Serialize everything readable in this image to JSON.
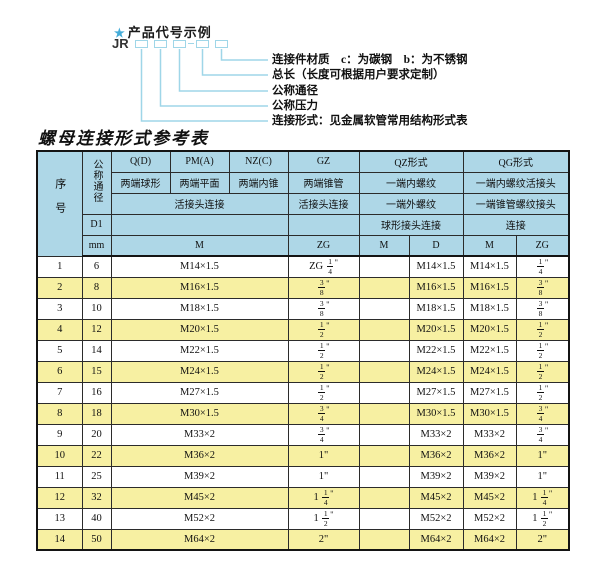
{
  "diagram": {
    "star": "★",
    "title": "产品代号示例",
    "code_prefix": "JR",
    "labels": [
      "连接件材质　c：为碳钢　b：为不锈钢",
      "总长（长度可根据用户要求定制）",
      "公称通径",
      "公称压力",
      "连接形式：见金属软管常用结构形式表"
    ]
  },
  "table": {
    "title": "螺母连接形式参考表",
    "header": {
      "serial": "序号",
      "nominal_diameter": "公称通径",
      "d1": "D1",
      "mm": "mm",
      "m_unit": "M",
      "joint_row3": "活接头连接",
      "groups": {
        "q": {
          "code": "Q(D)",
          "sub": "两端球形"
        },
        "pm": {
          "code": "PM(A)",
          "sub": "两端平面"
        },
        "nz": {
          "code": "NZ(C)",
          "sub": "两端内锥"
        },
        "gz": {
          "code": "GZ",
          "sub": "两端锥管",
          "row3": "活接头连接",
          "unit": "ZG"
        },
        "qz": {
          "code": "QZ形式",
          "sub1": "一端内螺纹",
          "sub2": "一端外螺纹",
          "row4": "球形接头连接",
          "unit_m": "M",
          "unit_d": "D"
        },
        "qg": {
          "code": "QG形式",
          "sub1": "一端内螺纹活接头",
          "sub2": "一端锥管螺纹接头",
          "row4": "连接",
          "unit_m": "M",
          "unit_zg": "ZG"
        }
      }
    },
    "rows": [
      {
        "no": "1",
        "dn": "6",
        "m": "M14×1.5",
        "gz": "ZG 1/4\"",
        "qz_m": "",
        "qz_d": "M14×1.5",
        "qg_m": "M14×1.5",
        "qg_zg": "1/4\""
      },
      {
        "no": "2",
        "dn": "8",
        "m": "M16×1.5",
        "gz": "3/8\"",
        "qz_m": "",
        "qz_d": "M16×1.5",
        "qg_m": "M16×1.5",
        "qg_zg": "3/8\""
      },
      {
        "no": "3",
        "dn": "10",
        "m": "M18×1.5",
        "gz": "3/8\"",
        "qz_m": "",
        "qz_d": "M18×1.5",
        "qg_m": "M18×1.5",
        "qg_zg": "3/8\""
      },
      {
        "no": "4",
        "dn": "12",
        "m": "M20×1.5",
        "gz": "1/2\"",
        "qz_m": "",
        "qz_d": "M20×1.5",
        "qg_m": "M20×1.5",
        "qg_zg": "1/2\""
      },
      {
        "no": "5",
        "dn": "14",
        "m": "M22×1.5",
        "gz": "1/2\"",
        "qz_m": "",
        "qz_d": "M22×1.5",
        "qg_m": "M22×1.5",
        "qg_zg": "1/2\""
      },
      {
        "no": "6",
        "dn": "15",
        "m": "M24×1.5",
        "gz": "1/2\"",
        "qz_m": "",
        "qz_d": "M24×1.5",
        "qg_m": "M24×1.5",
        "qg_zg": "1/2\""
      },
      {
        "no": "7",
        "dn": "16",
        "m": "M27×1.5",
        "gz": "1/2\"",
        "qz_m": "",
        "qz_d": "M27×1.5",
        "qg_m": "M27×1.5",
        "qg_zg": "1/2\""
      },
      {
        "no": "8",
        "dn": "18",
        "m": "M30×1.5",
        "gz": "3/4\"",
        "qz_m": "",
        "qz_d": "M30×1.5",
        "qg_m": "M30×1.5",
        "qg_zg": "3/4\""
      },
      {
        "no": "9",
        "dn": "20",
        "m": "M33×2",
        "gz": "3/4\"",
        "qz_m": "",
        "qz_d": "M33×2",
        "qg_m": "M33×2",
        "qg_zg": "3/4\""
      },
      {
        "no": "10",
        "dn": "22",
        "m": "M36×2",
        "gz": "1\"",
        "qz_m": "",
        "qz_d": "M36×2",
        "qg_m": "M36×2",
        "qg_zg": "1\""
      },
      {
        "no": "11",
        "dn": "25",
        "m": "M39×2",
        "gz": "1\"",
        "qz_m": "",
        "qz_d": "M39×2",
        "qg_m": "M39×2",
        "qg_zg": "1\""
      },
      {
        "no": "12",
        "dn": "32",
        "m": "M45×2",
        "gz": "1 1/4\"",
        "qz_m": "",
        "qz_d": "M45×2",
        "qg_m": "M45×2",
        "qg_zg": "1 1/4\""
      },
      {
        "no": "13",
        "dn": "40",
        "m": "M52×2",
        "gz": "1 1/2\"",
        "qz_m": "",
        "qz_d": "M52×2",
        "qg_m": "M52×2",
        "qg_zg": "1 1/2\""
      },
      {
        "no": "14",
        "dn": "50",
        "m": "M64×2",
        "gz": "2\"",
        "qz_m": "",
        "qz_d": "M64×2",
        "qg_m": "M64×2",
        "qg_zg": "2\""
      }
    ]
  },
  "colors": {
    "header_bg": "#aed7e7",
    "alt_row_bg": "#f7f0a2",
    "diagram_accent": "#9fd6e8",
    "star_blue": "#45acd8",
    "border": "#2b2b2b"
  }
}
